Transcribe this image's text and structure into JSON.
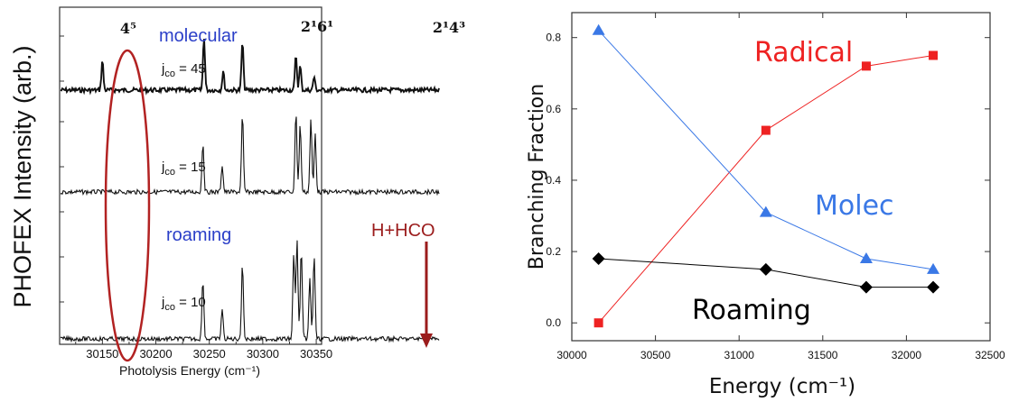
{
  "chart_data": [
    {
      "type": "line",
      "ylabel": "PHOFEX Intensity (arb.)",
      "xlabel": "Photolysis Energy (cm⁻¹)",
      "xlim": [
        30110,
        30355
      ],
      "x_ticks": [
        "30150",
        "30200",
        "30250",
        "30300",
        "30350"
      ],
      "x_tick_values": [
        30150,
        30200,
        30250,
        30300,
        30350
      ],
      "grid": false,
      "annotations": {
        "band_left": "4⁵",
        "band_mid": "2¹6¹",
        "band_right": "2¹4³",
        "molecular": "molecular",
        "roaming": "roaming",
        "arrow_label": "H+HCO",
        "arrow_x": 30327
      },
      "series": [
        {
          "label": "jₑₒ = 45",
          "label_sub_prefix": "j",
          "label_sub": "co",
          "label_suffix": " = 45",
          "peaks": [
            [
              30150,
              0.55
            ],
            [
              30245,
              1.0
            ],
            [
              30263,
              0.35
            ],
            [
              30281,
              0.9
            ],
            [
              30331,
              0.65
            ],
            [
              30335,
              0.45
            ],
            [
              30348,
              0.25
            ]
          ]
        },
        {
          "label": "jₑₒ = 15",
          "label_sub_prefix": "j",
          "label_sub": "co",
          "label_suffix": " = 15",
          "peaks": [
            [
              30244,
              0.55
            ],
            [
              30262,
              0.3
            ],
            [
              30281,
              0.85
            ],
            [
              30331,
              0.9
            ],
            [
              30335,
              0.75
            ],
            [
              30345,
              0.8
            ],
            [
              30349,
              0.65
            ]
          ]
        },
        {
          "label": "jₑₒ = 10",
          "label_sub_prefix": "j",
          "label_sub": "co",
          "label_suffix": " = 10",
          "peaks": [
            [
              30244,
              0.6
            ],
            [
              30262,
              0.3
            ],
            [
              30281,
              0.75
            ],
            [
              30329,
              0.85
            ],
            [
              30332,
              1.0
            ],
            [
              30336,
              0.9
            ],
            [
              30344,
              0.6
            ],
            [
              30348,
              0.85
            ]
          ]
        }
      ]
    },
    {
      "type": "line",
      "ylabel": "Branching Fraction",
      "xlabel": "Energy (cm⁻¹)",
      "xlim": [
        30000,
        32500
      ],
      "ylim": [
        -0.05,
        0.87
      ],
      "x_ticks": [
        30000,
        30500,
        31000,
        31500,
        32000,
        32500
      ],
      "y_ticks": [
        0.0,
        0.2,
        0.4,
        0.6,
        0.8
      ],
      "y_tick_labels": [
        "0.0",
        "0.2",
        "0.4",
        "0.6",
        "0.8"
      ],
      "x": [
        30160,
        31160,
        31760,
        32160
      ],
      "grid": false,
      "series": [
        {
          "name": "Radical",
          "color": "#ee2222",
          "marker": "square",
          "values": [
            0.0,
            0.54,
            0.72,
            0.75
          ]
        },
        {
          "name": "Molec",
          "color": "#3a78e6",
          "marker": "triangle",
          "values": [
            0.82,
            0.31,
            0.18,
            0.15
          ]
        },
        {
          "name": "Roaming",
          "color": "#000000",
          "marker": "diamond",
          "values": [
            0.18,
            0.15,
            0.1,
            0.1
          ]
        }
      ]
    }
  ],
  "colors": {
    "ellipse": "#b22222",
    "arrow": "#9b1c1c",
    "molecular_text": "#2b3fc8"
  }
}
